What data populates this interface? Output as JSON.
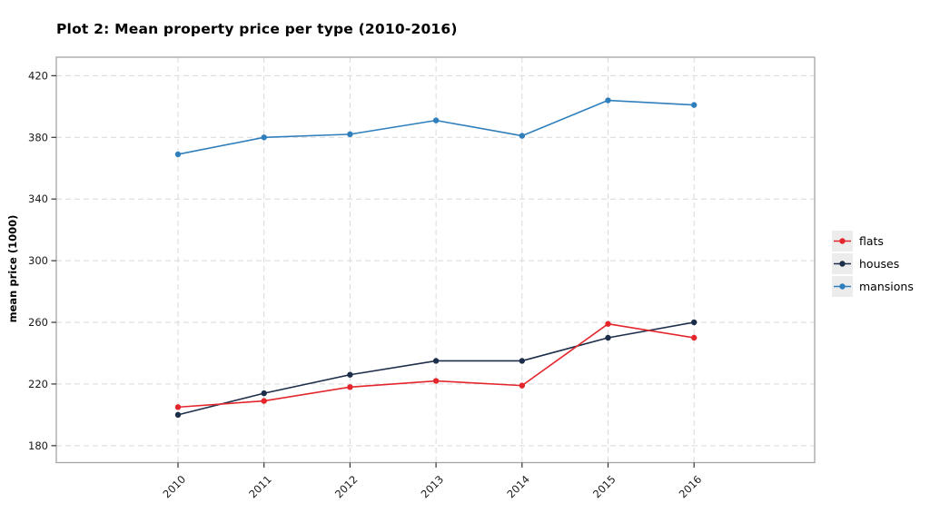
{
  "chart_data": {
    "type": "line",
    "title": "Plot 2: Mean property price per type (2010-2016)",
    "xlabel": "",
    "ylabel": "mean price (1000)",
    "x": [
      "2010",
      "2011",
      "2012",
      "2013",
      "2014",
      "2015",
      "2016"
    ],
    "series": [
      {
        "name": "flats",
        "color": "#e4262c",
        "values": [
          205,
          209,
          218,
          222,
          219,
          259,
          250
        ]
      },
      {
        "name": "houses",
        "color": "#1d2e4a",
        "values": [
          200,
          214,
          226,
          235,
          235,
          250,
          260
        ]
      },
      {
        "name": "mansions",
        "color": "#2f7fbc",
        "values": [
          369,
          380,
          382,
          391,
          381,
          404,
          401
        ]
      }
    ],
    "yticks": [
      180,
      220,
      260,
      300,
      340,
      380,
      420
    ],
    "ylim": [
      169,
      432
    ],
    "grid": true,
    "grid_style": "dashed",
    "marker": "circle",
    "legend_position": "right",
    "legend_items": [
      "flats",
      "houses",
      "mansions"
    ]
  },
  "colors": {
    "background": "#ffffff",
    "grid": "#d9d9d9",
    "panel_border": "#a3a3a3",
    "tick": "#333333",
    "tick_label": "#1a1a1a",
    "legend_key_bg": "#ececec",
    "title": "#000000"
  }
}
